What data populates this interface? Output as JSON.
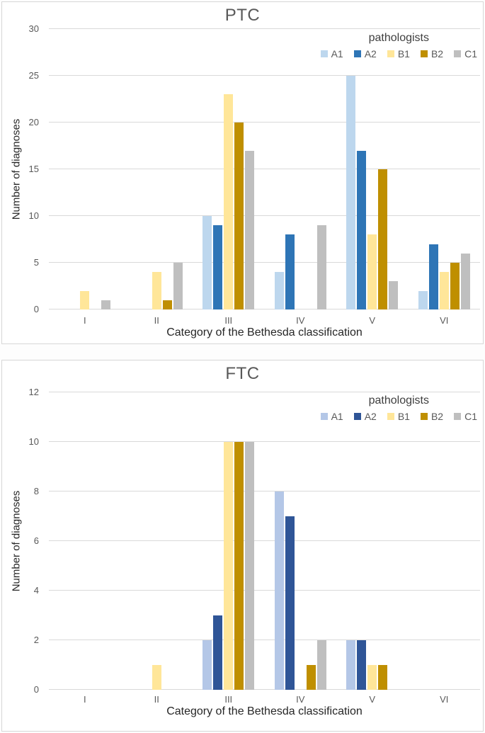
{
  "chart_data": [
    {
      "type": "bar",
      "title": "PTC",
      "legend_title": "pathologists",
      "legend_position": "top-right",
      "xlabel": "Category of the Bethesda classification",
      "ylabel": "Number of diagnoses",
      "categories": [
        "I",
        "II",
        "III",
        "IV",
        "V",
        "VI"
      ],
      "ylim": [
        0,
        30
      ],
      "y_ticks": [
        0,
        5,
        10,
        15,
        20,
        25,
        30
      ],
      "grid": true,
      "series": [
        {
          "name": "A1",
          "color": "#BDD7EE",
          "values": [
            0,
            0,
            10,
            4,
            25,
            2
          ]
        },
        {
          "name": "A2",
          "color": "#2E75B6",
          "values": [
            0,
            0,
            9,
            8,
            17,
            7
          ]
        },
        {
          "name": "B1",
          "color": "#FFE699",
          "values": [
            2,
            4,
            23,
            0,
            8,
            4
          ]
        },
        {
          "name": "B2",
          "color": "#BF8F00",
          "values": [
            0,
            1,
            20,
            0,
            15,
            5
          ]
        },
        {
          "name": "C1",
          "color": "#BFBFBF",
          "values": [
            1,
            5,
            17,
            9,
            3,
            6
          ]
        }
      ]
    },
    {
      "type": "bar",
      "title": "FTC",
      "legend_title": "pathologists",
      "legend_position": "top-right",
      "xlabel": "Category of the Bethesda classification",
      "ylabel": "Number of diagnoses",
      "categories": [
        "I",
        "II",
        "III",
        "IV",
        "V",
        "VI"
      ],
      "ylim": [
        0,
        12
      ],
      "y_ticks": [
        0,
        2,
        4,
        6,
        8,
        10,
        12
      ],
      "grid": true,
      "series": [
        {
          "name": "A1",
          "color": "#B4C7E7",
          "values": [
            0,
            0,
            2,
            8,
            2,
            0
          ]
        },
        {
          "name": "A2",
          "color": "#2F5597",
          "values": [
            0,
            0,
            3,
            7,
            2,
            0
          ]
        },
        {
          "name": "B1",
          "color": "#FFE699",
          "values": [
            0,
            1,
            10,
            0,
            1,
            0
          ]
        },
        {
          "name": "B2",
          "color": "#BF8F00",
          "values": [
            0,
            0,
            10,
            1,
            1,
            0
          ]
        },
        {
          "name": "C1",
          "color": "#BFBFBF",
          "values": [
            0,
            0,
            10,
            2,
            0,
            0
          ]
        }
      ]
    }
  ],
  "colors": {
    "gridline": "#d9d9d9",
    "panel_border": "#d7d7d7",
    "tick_text": "#595959",
    "axis_title_text": "#262626",
    "chart_title_text": "#595959"
  }
}
